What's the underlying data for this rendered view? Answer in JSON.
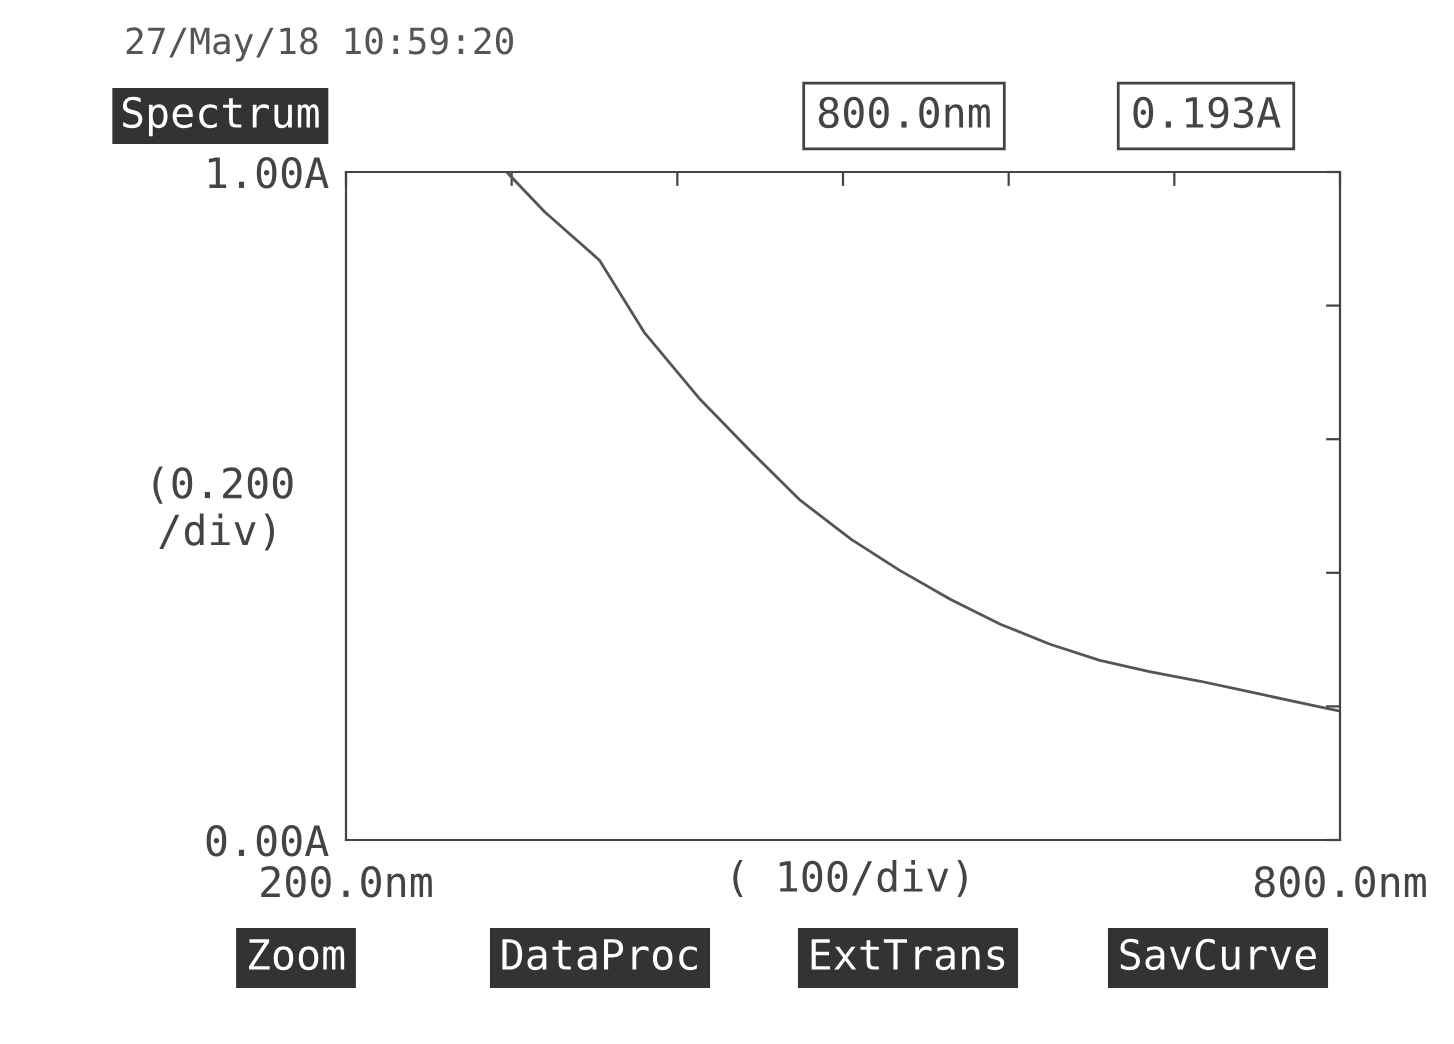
{
  "chart_data": {
    "type": "line",
    "title": "Spectrum",
    "xlabel": "( 100/div)",
    "ylabel": "(0.200\n/div)",
    "x": [
      297,
      320,
      353,
      380,
      414,
      445,
      474,
      505,
      534,
      565,
      595,
      625,
      655,
      685,
      715,
      745,
      775,
      800
    ],
    "series": [
      {
        "color": "#555555",
        "values": [
          1.0,
          0.94,
          0.868,
          0.76,
          0.659,
          0.58,
          0.509,
          0.45,
          0.404,
          0.36,
          0.323,
          0.293,
          0.269,
          0.252,
          0.238,
          0.222,
          0.206,
          0.193
        ]
      }
    ],
    "xlim": [
      200,
      800
    ],
    "ylim": [
      0,
      1
    ],
    "xticks": [
      {
        "value": 200,
        "label": "200.0nm"
      },
      {
        "value": 300,
        "label": null
      },
      {
        "value": 400,
        "label": null
      },
      {
        "value": 500,
        "label": null
      },
      {
        "value": 600,
        "label": null
      },
      {
        "value": 700,
        "label": null
      },
      {
        "value": 800,
        "label": "800.0nm"
      }
    ],
    "yticks": [
      {
        "value": 0,
        "label": "0.00A"
      },
      {
        "value": 0.2,
        "label": null
      },
      {
        "value": 0.4,
        "label": null
      },
      {
        "value": 0.6,
        "label": null
      },
      {
        "value": 0.8,
        "label": null
      },
      {
        "value": 1,
        "label": "1.00A"
      }
    ],
    "grid": false,
    "legend": false,
    "annotations": [
      "27/May/18 10:59:20",
      "800.0nm",
      "0.193A",
      "Zoom",
      "DataProc",
      "ExtTrans",
      "SavCurve"
    ]
  }
}
